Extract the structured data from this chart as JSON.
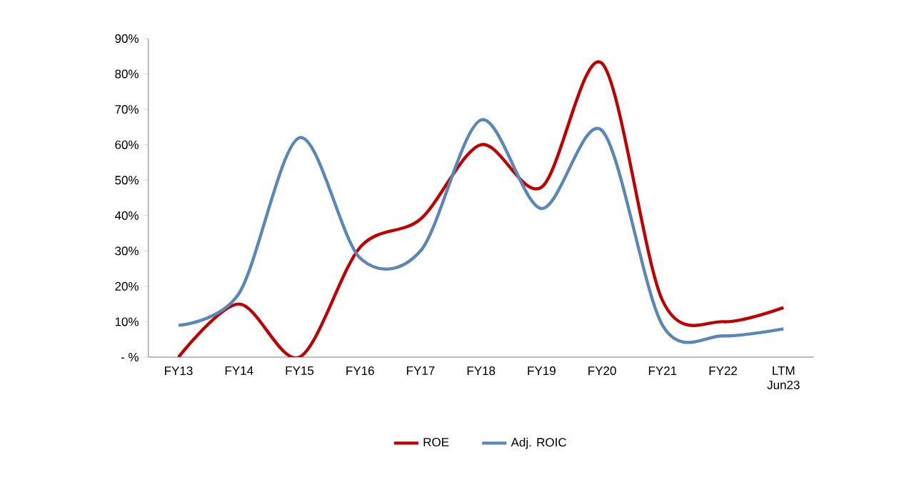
{
  "chart_data": {
    "type": "line",
    "categories": [
      "FY13",
      "FY14",
      "FY15",
      "FY16",
      "FY17",
      "FY18",
      "FY19",
      "FY20",
      "FY21",
      "FY22",
      "LTM Jun23"
    ],
    "series": [
      {
        "name": "ROE",
        "color": "#c00000",
        "values": [
          0,
          15,
          0,
          31,
          39,
          60,
          48,
          83,
          16,
          10,
          14
        ]
      },
      {
        "name": "Adj. ROIC",
        "color": "#5b87b8",
        "values": [
          9,
          18,
          62,
          28,
          30,
          67,
          42,
          64,
          9,
          6,
          8
        ]
      }
    ],
    "ylim": [
      0,
      90
    ],
    "yticks": [
      {
        "value": 0,
        "label": "- %"
      },
      {
        "value": 10,
        "label": "10%"
      },
      {
        "value": 20,
        "label": "20%"
      },
      {
        "value": 30,
        "label": "30%"
      },
      {
        "value": 40,
        "label": "40%"
      },
      {
        "value": 50,
        "label": "50%"
      },
      {
        "value": 60,
        "label": "60%"
      },
      {
        "value": 70,
        "label": "70%"
      },
      {
        "value": 80,
        "label": "80%"
      },
      {
        "value": 90,
        "label": "90%"
      }
    ],
    "grid": false,
    "legend": "bottom",
    "marker": "none",
    "line_style": "solid"
  }
}
